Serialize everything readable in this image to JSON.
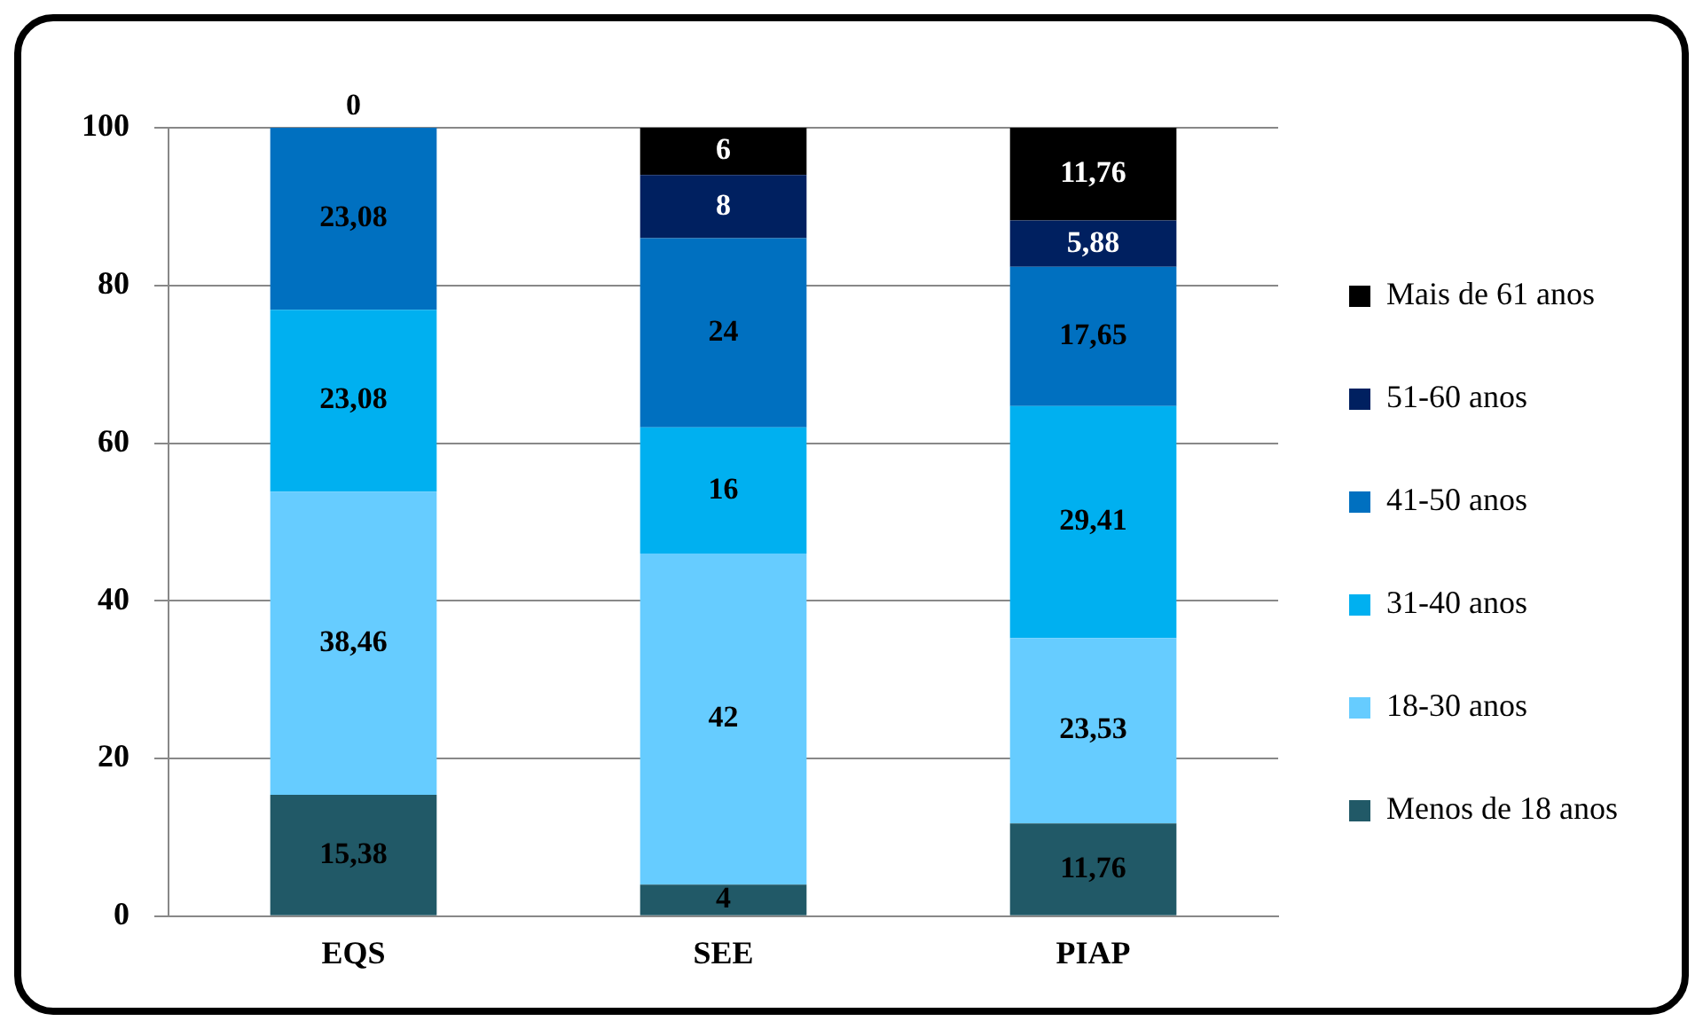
{
  "chart_data": {
    "type": "bar",
    "stacked": true,
    "categories": [
      "EQS",
      "SEE",
      "PIAP"
    ],
    "ylim": [
      0,
      100
    ],
    "yticks": [
      0,
      20,
      40,
      60,
      80,
      100
    ],
    "grid": "y",
    "legend": "right",
    "series": [
      {
        "name": "Menos de 18 anos",
        "color": "#215967",
        "values": [
          15.38,
          4,
          11.76
        ],
        "value_labels": [
          "15,38",
          "4",
          "11,76"
        ]
      },
      {
        "name": "18-30 anos",
        "color": "#66ccff",
        "values": [
          38.46,
          42,
          23.53
        ],
        "value_labels": [
          "38,46",
          "42",
          "23,53"
        ]
      },
      {
        "name": "31-40 anos",
        "color": "#00b0f0",
        "values": [
          23.08,
          16,
          29.41
        ],
        "value_labels": [
          "23,08",
          "16",
          "29,41"
        ]
      },
      {
        "name": "41-50 anos",
        "color": "#0070c0",
        "values": [
          23.08,
          24,
          17.65
        ],
        "value_labels": [
          "23,08",
          "24",
          "17,65"
        ]
      },
      {
        "name": "51-60 anos",
        "color": "#002060",
        "values": [
          0,
          8,
          5.88
        ],
        "value_labels": [
          null,
          "8",
          "5,88"
        ]
      },
      {
        "name": "Mais de 61 anos",
        "color": "#000000",
        "values": [
          0,
          6,
          11.76
        ],
        "value_labels": [
          "0",
          "6",
          "11,76"
        ]
      }
    ]
  }
}
